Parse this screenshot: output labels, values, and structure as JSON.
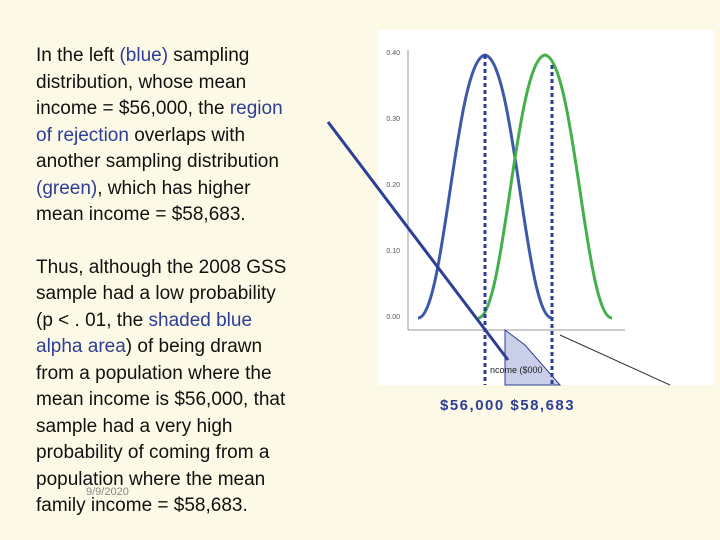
{
  "slide": {
    "paragraphs": [
      {
        "lines": [
          [
            {
              "text": "In the left "
            },
            {
              "text": "(blue)",
              "color": "#2e3d96"
            },
            {
              "text": " sampling"
            }
          ],
          [
            {
              "text": "distribution, whose mean"
            }
          ],
          [
            {
              "text": "income = $56,000, the "
            },
            {
              "text": "region",
              "color": "#2e3d96"
            }
          ],
          [
            {
              "text": "of rejection",
              "color": "#2e3d96"
            },
            {
              "text": " overlaps with"
            }
          ],
          [
            {
              "text": "another sampling distribution"
            }
          ],
          [
            {
              "text": "(green)",
              "color": "#2e3d96"
            },
            {
              "text": ", which has higher"
            }
          ],
          [
            {
              "text": "mean income = $58,683."
            }
          ]
        ]
      },
      {
        "lines": [
          [
            {
              "text": "Thus, although the 2008 GSS"
            }
          ],
          [
            {
              "text": "sample had a low probability"
            }
          ],
          [
            {
              "text": "(p < . 01, the "
            },
            {
              "text": "shaded blue",
              "color": "#2e3d96"
            }
          ],
          [
            {
              "text": "alpha area",
              "color": "#2e3d96"
            },
            {
              "text": ") of being drawn"
            }
          ],
          [
            {
              "text": "from a population where the"
            }
          ],
          [
            {
              "text": "mean income is $56,000, that"
            }
          ],
          [
            {
              "text": "sample had a very high"
            }
          ],
          [
            {
              "text": "probability of coming from a"
            }
          ],
          [
            {
              "text": "population where the mean"
            }
          ],
          [
            {
              "text": "family income = $58,683."
            }
          ]
        ]
      }
    ],
    "date": "9/9/2020",
    "figure": {
      "y_labels": [
        "0.40",
        "0.30",
        "0.20",
        "0.10",
        "0.00"
      ],
      "axis_label": "ncome ($000",
      "caption": "$56,000  $58,683"
    }
  }
}
